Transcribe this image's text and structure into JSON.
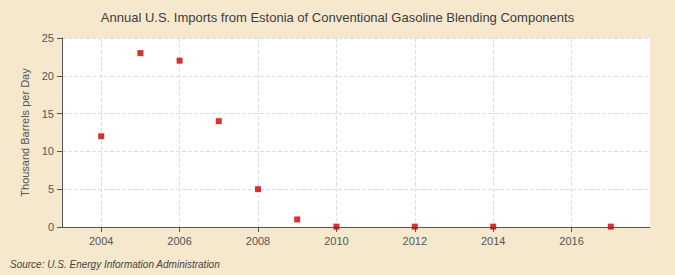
{
  "chart_data": {
    "type": "scatter",
    "title": "Annual U.S. Imports from Estonia of Conventional Gasoline Blending Components",
    "ylabel": "Thousand Barrels per Day",
    "annotation": "Source: U.S. Energy Information Administration",
    "x": [
      2004,
      2005,
      2006,
      2007,
      2008,
      2009,
      2010,
      2012,
      2014,
      2017
    ],
    "values": [
      12.0,
      23.0,
      22.0,
      14.0,
      5.0,
      1.0,
      0.05,
      0.05,
      0.05,
      0.05
    ],
    "color": "#cc0000",
    "marker": "square",
    "xlim": [
      2003.0,
      2018.0
    ],
    "xticks": [
      2004,
      2006,
      2008,
      2010,
      2012,
      2014,
      2016
    ],
    "ylim": [
      0,
      25
    ],
    "yticks": [
      0,
      5,
      10,
      15,
      20,
      25
    ],
    "grid": true
  }
}
